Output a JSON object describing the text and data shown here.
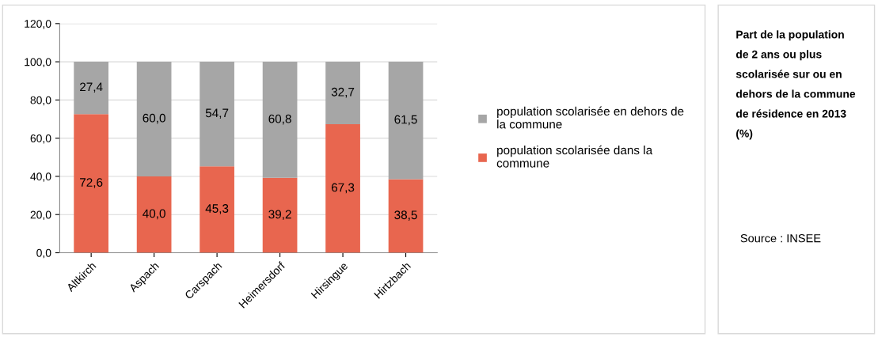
{
  "chart_data": {
    "type": "bar",
    "stacked": true,
    "title": "Part de la population de 2 ans ou plus scolarisée sur ou en dehors de la commune de résidence en 2013 (%)",
    "annotations": [
      "Source : INSEE"
    ],
    "categories": [
      "Altkirch",
      "Aspach",
      "Carspach",
      "Heimersdorf",
      "Hirsingue",
      "Hirtzbach"
    ],
    "series": [
      {
        "name": "population scolarisée dans la commune",
        "color": "#e8664f",
        "values": [
          72.6,
          40.0,
          45.3,
          39.2,
          67.3,
          38.5
        ],
        "value_labels": [
          "72,6",
          "40,0",
          "45,3",
          "39,2",
          "67,3",
          "38,5"
        ]
      },
      {
        "name": "population scolarisée en dehors de la commune",
        "color": "#a6a6a6",
        "values": [
          27.4,
          60.0,
          54.7,
          60.8,
          32.7,
          61.5
        ],
        "value_labels": [
          "27,4",
          "60,0",
          "54,7",
          "60,8",
          "32,7",
          "61,5"
        ]
      }
    ],
    "ylim": [
      0,
      120
    ],
    "yticks": [
      {
        "value": 0,
        "label": "0,0"
      },
      {
        "value": 20,
        "label": "20,0"
      },
      {
        "value": 40,
        "label": "40,0"
      },
      {
        "value": 60,
        "label": "60,0"
      },
      {
        "value": 80,
        "label": "80,0"
      },
      {
        "value": 100,
        "label": "100,0"
      },
      {
        "value": 120,
        "label": "120,0"
      }
    ],
    "grid": "y",
    "legend": "right"
  }
}
